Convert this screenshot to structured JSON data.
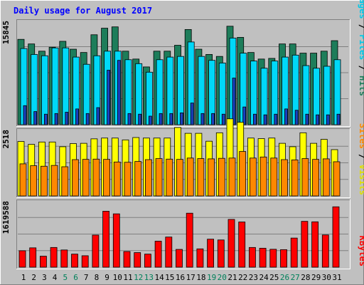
{
  "chart_data": {
    "type": "bar",
    "title": "Daily usage for August 2017",
    "categories": [
      "1",
      "2",
      "3",
      "4",
      "5",
      "6",
      "7",
      "8",
      "9",
      "10",
      "11",
      "12",
      "13",
      "14",
      "15",
      "16",
      "17",
      "18",
      "19",
      "20",
      "21",
      "22",
      "23",
      "24",
      "25",
      "26",
      "27",
      "28",
      "29",
      "30",
      "31"
    ],
    "weekend_days": [
      "5",
      "6",
      "12",
      "13",
      "19",
      "20",
      "26",
      "27"
    ],
    "panels": [
      {
        "name": "hits-files-pages",
        "max_label": "15845",
        "ymax": 15845,
        "series": [
          {
            "name": "Hits",
            "color": "#1d7d5a",
            "values": [
              13000,
              12300,
              11200,
              11800,
              12700,
              11500,
              11000,
              13700,
              14700,
              14900,
              11200,
              10000,
              8800,
              11200,
              11200,
              12100,
              14500,
              11500,
              10700,
              10400,
              15000,
              13300,
              11000,
              10000,
              10100,
              12300,
              12300,
              10900,
              10900,
              11200,
              12800
            ]
          },
          {
            "name": "Files",
            "color": "#00d8f8",
            "values": [
              11600,
              10700,
              10500,
              11700,
              11700,
              10300,
              9200,
              10500,
              11200,
              11200,
              9900,
              9300,
              8000,
              9900,
              10300,
              10400,
              12600,
              10400,
              9800,
              9400,
              13200,
              10900,
              9700,
              8600,
              9700,
              10300,
              10600,
              9000,
              8600,
              8900,
              9900
            ]
          },
          {
            "name": "Pages",
            "color": "#1a3fbf",
            "values": [
              2900,
              2000,
              1600,
              1700,
              1900,
              2400,
              1700,
              2600,
              8300,
              9800,
              1700,
              1600,
              1300,
              1700,
              1700,
              1800,
              3300,
              1700,
              1700,
              1600,
              7100,
              2700,
              1600,
              1500,
              1600,
              2400,
              2200,
              1600,
              1500,
              1500,
              1600
            ]
          }
        ]
      },
      {
        "name": "visits-sites",
        "max_label": "2518",
        "ymax": 2518,
        "series": [
          {
            "name": "Visits",
            "color": "#ffff00",
            "values": [
              2070,
              1960,
              2050,
              2050,
              1870,
              1990,
              2000,
              2170,
              2200,
              2200,
              2130,
              2220,
              2200,
              2200,
              2200,
              2600,
              2380,
              2380,
              2080,
              2400,
              2930,
              2800,
              2200,
              2180,
              2200,
              2000,
              1870,
              2400,
              2000,
              2150,
              1760
            ]
          },
          {
            "name": "Sites",
            "color": "#ff8800",
            "values": [
              1220,
              1150,
              1130,
              1160,
              1110,
              1380,
              1390,
              1400,
              1390,
              1290,
              1280,
              1310,
              1380,
              1420,
              1400,
              1390,
              1440,
              1420,
              1410,
              1430,
              1440,
              1690,
              1440,
              1480,
              1440,
              1380,
              1370,
              1420,
              1390,
              1410,
              1300
            ]
          }
        ]
      },
      {
        "name": "kbytes",
        "max_label": "1619588",
        "ymax": 1619588,
        "series": [
          {
            "name": "KBytes",
            "color": "#ff0000",
            "values": [
              402000,
              473000,
              269000,
              482000,
              421000,
              320000,
              280000,
              785000,
              1368000,
              1304000,
              383000,
              357000,
              320000,
              636000,
              737000,
              435000,
              1320000,
              448000,
              685000,
              666000,
              1168000,
              1105000,
              482000,
              464000,
              438000,
              429000,
              712000,
              1121000,
              1109000,
              788000,
              1476000
            ]
          }
        ]
      }
    ]
  },
  "legend": {
    "top": [
      "Pages",
      "Files",
      "Hits"
    ],
    "mid": [
      "Sites",
      "Visits"
    ],
    "bottom": [
      "KBytes"
    ],
    "separator": " / "
  },
  "colors": {
    "background": "#c0c0c0",
    "border_light": "#ffffff",
    "border_dark": "#808080",
    "title": "#0000ff",
    "weekday_label": "#000000",
    "weekend_label": "#00805a",
    "gridline": "#808080",
    "legend_pages": "#00c8e8",
    "legend_files": "#00c8e8",
    "legend_hits": "#1d7d5a",
    "legend_sites": "#ff8800",
    "legend_visits": "#e0e000",
    "legend_kbytes": "#ff0000"
  }
}
